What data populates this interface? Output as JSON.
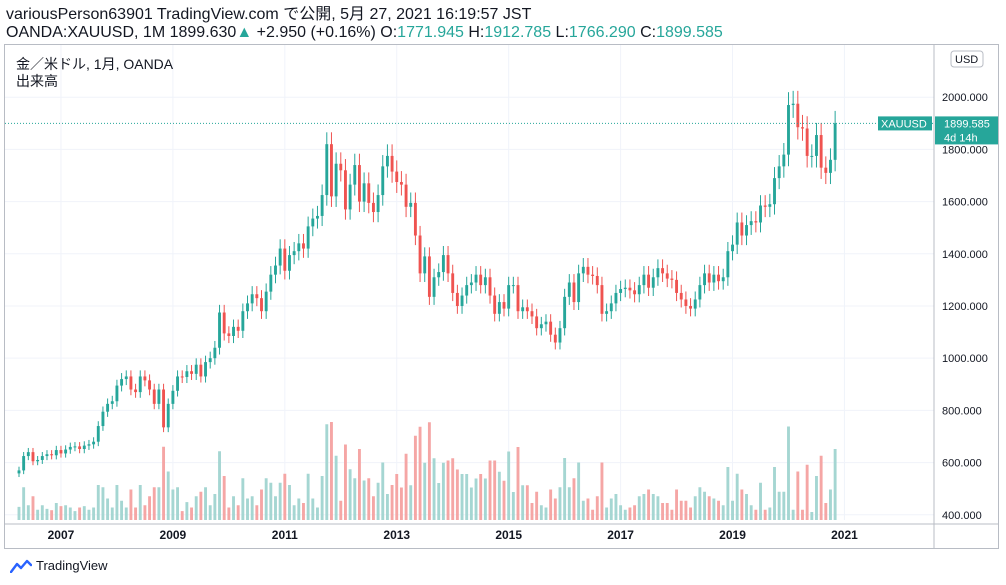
{
  "header": {
    "line1": "variousPerson63901 TradingView.com で公開, 5月 27, 2021 16:19:57 JST",
    "symbol": "OANDA:XAUUSD, 1M",
    "last": "1899.630",
    "change_arrow": "▲",
    "change": "+2.950 (+0.16%)",
    "o_label": "O:",
    "o": "1771.945",
    "h_label": "H:",
    "h": "1912.785",
    "l_label": "L:",
    "l": "1766.290",
    "c_label": "C:",
    "c": "1899.585"
  },
  "legend": {
    "title": "金／米ドル, 1月, OANDA",
    "volume_label": "出来高"
  },
  "footer": {
    "brand": "TradingView"
  },
  "colors": {
    "up": "#26a69a",
    "down": "#ef5350",
    "vol_up": "#a5d6d2",
    "vol_down": "#f5a6a5",
    "grid": "#f0f3fa"
  },
  "chart_data": {
    "type": "candlestick",
    "currency": "USD",
    "y_ticks": [
      400,
      600,
      800,
      1000,
      1200,
      1400,
      1600,
      1800,
      2000
    ],
    "y_tick_labels": [
      "400.000",
      "600.000",
      "800.000",
      "1000.000",
      "1200.000",
      "1400.000",
      "1600.000",
      "1800.000",
      "2000.000"
    ],
    "ylim": [
      380,
      2200
    ],
    "x_labels": [
      "2007",
      "2009",
      "2011",
      "2013",
      "2015",
      "2017",
      "2019",
      "2021"
    ],
    "x_label_years": [
      2007,
      2009,
      2011,
      2013,
      2015,
      2017,
      2019,
      2021
    ],
    "xlim_years": [
      2006.0,
      2022.6
    ],
    "first_month": "2006-04",
    "price_label": {
      "symbol": "XAUUSD",
      "value": "1899.585",
      "countdown": "4d 14h",
      "price": 1899.585
    },
    "closes": [
      570,
      625,
      640,
      605,
      610,
      625,
      632,
      628,
      648,
      635,
      650,
      660,
      662,
      652,
      665,
      670,
      680,
      740,
      795,
      825,
      835,
      895,
      920,
      930,
      880,
      870,
      930,
      915,
      880,
      825,
      880,
      735,
      825,
      875,
      930,
      928,
      950,
      940,
      975,
      930,
      985,
      1000,
      1040,
      1175,
      1095,
      1085,
      1120,
      1105,
      1180,
      1210,
      1245,
      1230,
      1180,
      1255,
      1320,
      1355,
      1420,
      1335,
      1395,
      1410,
      1440,
      1420,
      1505,
      1535,
      1545,
      1625,
      1820,
      1620,
      1745,
      1720,
      1570,
      1665,
      1740,
      1600,
      1670,
      1595,
      1560,
      1625,
      1735,
      1775,
      1715,
      1675,
      1665,
      1580,
      1595,
      1470,
      1325,
      1390,
      1235,
      1310,
      1330,
      1395,
      1325,
      1250,
      1200,
      1240,
      1280,
      1290,
      1320,
      1280,
      1310,
      1240,
      1170,
      1215,
      1190,
      1280,
      1280,
      1180,
      1195,
      1180,
      1160,
      1115,
      1130,
      1140,
      1090,
      1060,
      1115,
      1235,
      1290,
      1215,
      1325,
      1350,
      1320,
      1315,
      1280,
      1170,
      1180,
      1210,
      1250,
      1265,
      1270,
      1260,
      1245,
      1280,
      1320,
      1270,
      1310,
      1345,
      1325,
      1305,
      1300,
      1250,
      1225,
      1200,
      1190,
      1225,
      1280,
      1325,
      1290,
      1320,
      1295,
      1310,
      1410,
      1435,
      1520,
      1470,
      1510,
      1525,
      1520,
      1585,
      1580,
      1590,
      1690,
      1735,
      1780,
      1970,
      1975,
      1885,
      1880,
      1775,
      1775,
      1855,
      1730,
      1710,
      1760,
      1900
    ]
  }
}
